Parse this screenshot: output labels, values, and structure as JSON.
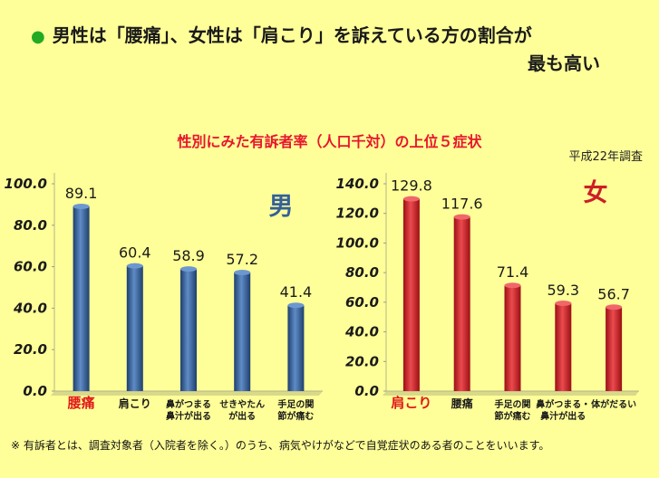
{
  "headline": {
    "bullet": "●",
    "line1": "男性は「腰痛」、女性は「肩こり」を訴えている方の割合が",
    "line2": "最も高い"
  },
  "subtitle": "性別にみた有訴者率（人口千対）の上位５症状",
  "survey_year": "平成22年調査",
  "footnote": "※ 有訴者とは、調査対象者（入院者を除く。）のうち、病気やけがなどで自覚症状のある者のことをいいます。",
  "colors": {
    "male": "#35609a",
    "female": "#cc1f26",
    "highlight": "#e01818",
    "title": "#e8152d"
  },
  "chart_data": [
    {
      "type": "bar",
      "label": "男",
      "categories": [
        "腰痛",
        "肩こり",
        "鼻がつまる・鼻汁が出る",
        "せきやたんが出る",
        "手足の関節が痛む"
      ],
      "category_lines": [
        [
          "腰痛"
        ],
        [
          "肩こり"
        ],
        [
          "鼻がつまる",
          "鼻汁が出る"
        ],
        [
          "せきやたん",
          "が出る"
        ],
        [
          "手足の関",
          "節が痛む"
        ]
      ],
      "values": [
        89.1,
        60.4,
        58.9,
        57.2,
        41.4
      ],
      "value_labels": [
        "89.1",
        "60.4",
        "58.9",
        "57.2",
        "41.4"
      ],
      "ylim": [
        0,
        100
      ],
      "ticks": [
        "0.0",
        "20.0",
        "40.0",
        "60.0",
        "80.0",
        "100.0"
      ],
      "highlight_index": 0
    },
    {
      "type": "bar",
      "label": "女",
      "categories": [
        "肩こり",
        "腰痛",
        "手足の関節が痛む",
        "鼻がつまる・鼻汁が出る",
        "体がだるい"
      ],
      "category_lines": [
        [
          "肩こり"
        ],
        [
          "腰痛"
        ],
        [
          "手足の関",
          "節が痛む"
        ],
        [
          "鼻がつまる・",
          "鼻汁が出る"
        ],
        [
          "体がだるい"
        ]
      ],
      "values": [
        129.8,
        117.6,
        71.4,
        59.3,
        56.7
      ],
      "value_labels": [
        "129.8",
        "117.6",
        "71.4",
        "59.3",
        "56.7"
      ],
      "ylim": [
        0,
        140
      ],
      "ticks": [
        "0.0",
        "20.0",
        "40.0",
        "60.0",
        "80.0",
        "100.0",
        "120.0",
        "140.0"
      ],
      "highlight_index": 0
    }
  ]
}
